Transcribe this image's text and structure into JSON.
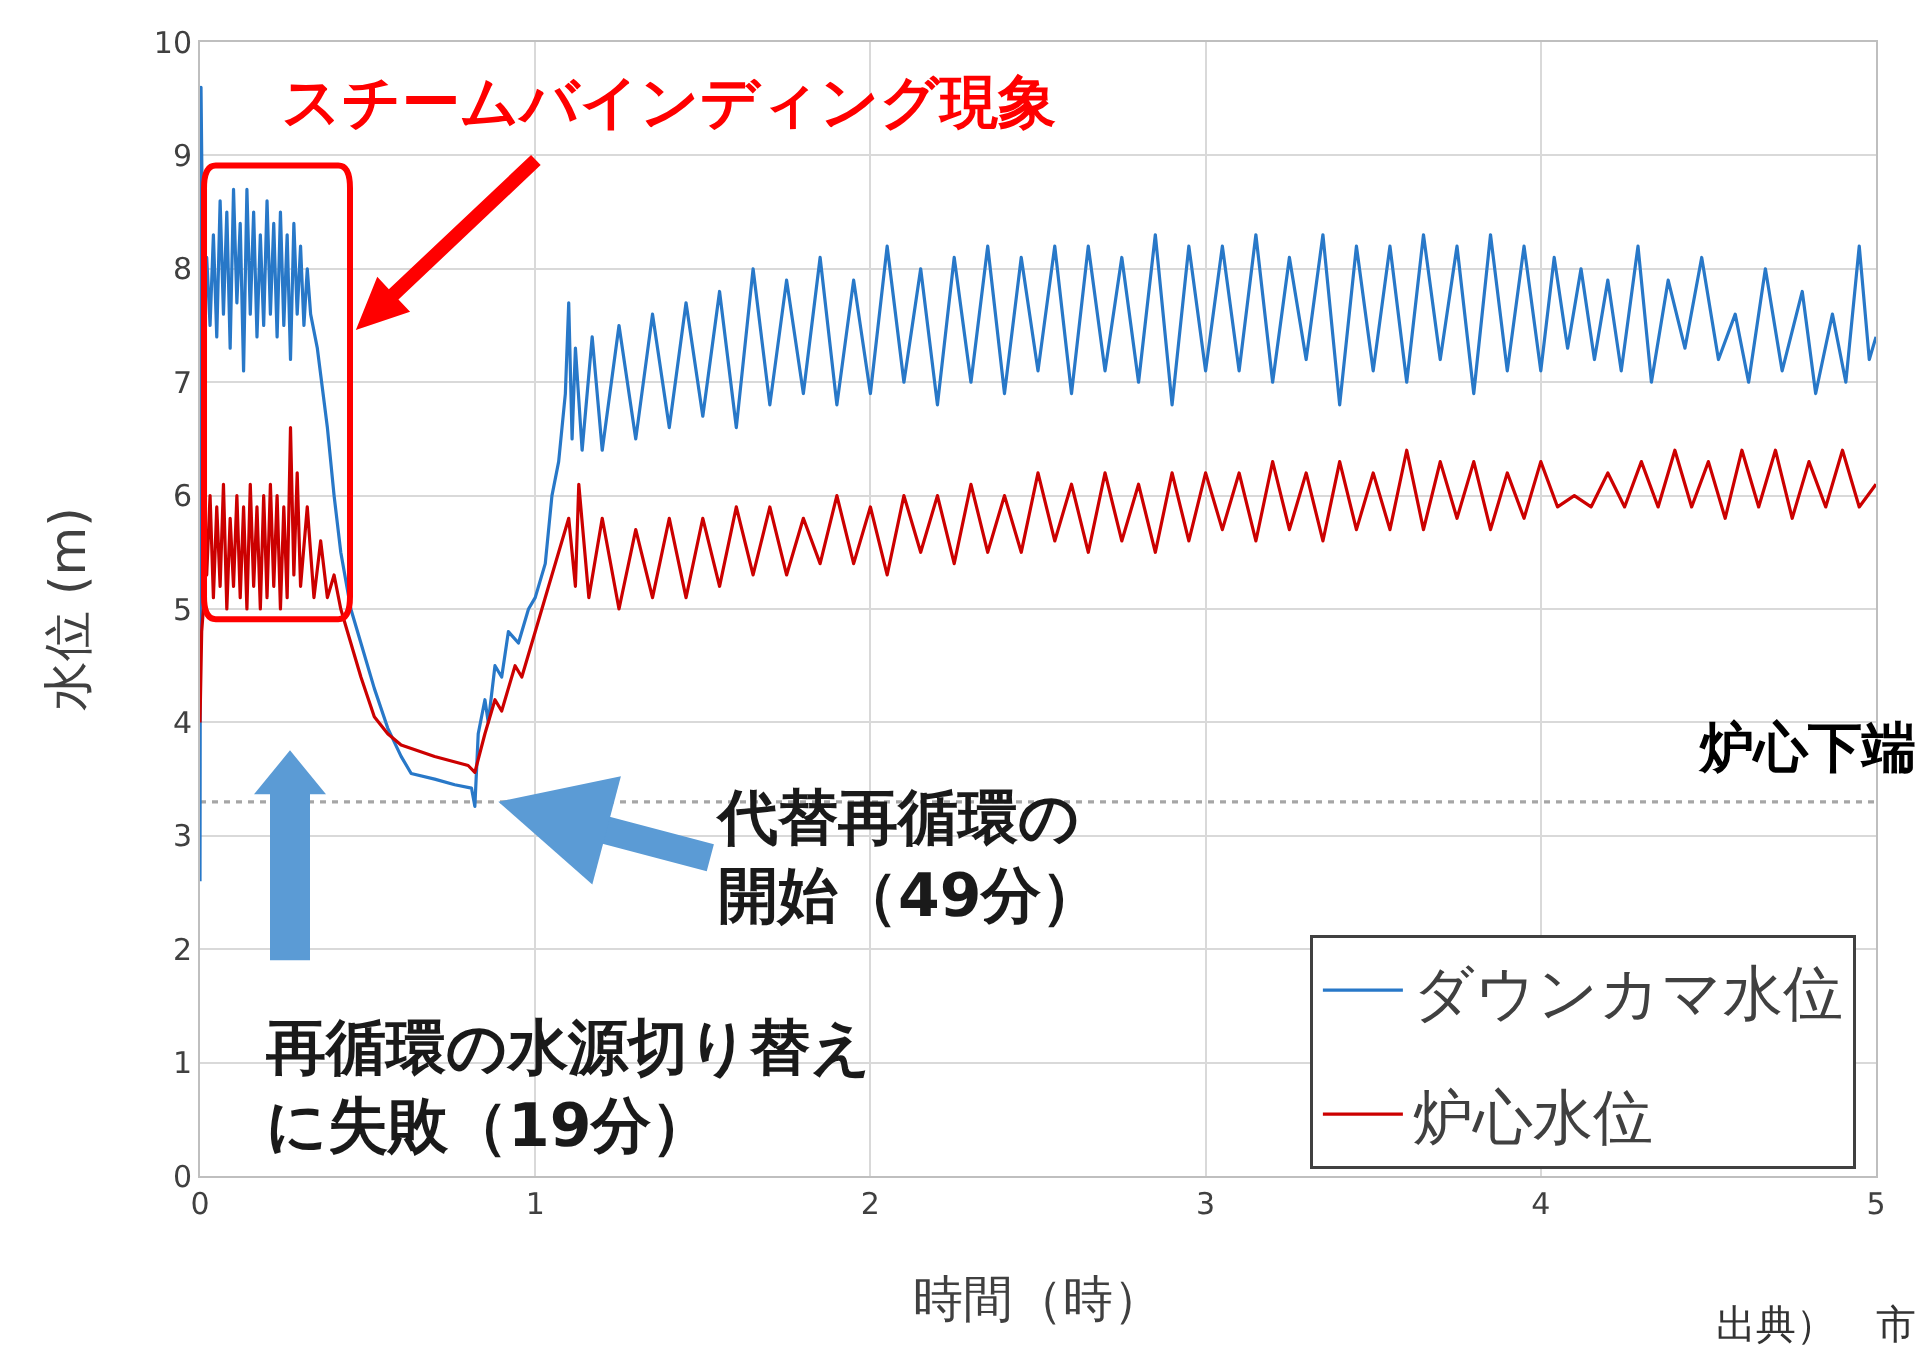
{
  "chart_data": {
    "type": "line",
    "xlabel": "時間（時）",
    "ylabel": "水位 (m)",
    "xlim": [
      0,
      5
    ],
    "xticks": [
      0,
      1,
      2,
      3,
      4,
      5
    ],
    "ylim": [
      0,
      10
    ],
    "yticks": [
      0,
      1,
      2,
      3,
      4,
      5,
      6,
      7,
      8,
      9,
      10
    ],
    "grid": true,
    "legend": "bottom right",
    "series": [
      {
        "name": "ダウンカマ水位",
        "color": "#2878c8",
        "x": [
          0,
          0.003,
          0.01,
          0.02,
          0.03,
          0.04,
          0.05,
          0.06,
          0.07,
          0.08,
          0.09,
          0.1,
          0.11,
          0.12,
          0.13,
          0.14,
          0.15,
          0.16,
          0.17,
          0.18,
          0.19,
          0.2,
          0.21,
          0.22,
          0.23,
          0.24,
          0.25,
          0.26,
          0.27,
          0.28,
          0.29,
          0.3,
          0.31,
          0.32,
          0.33,
          0.35,
          0.38,
          0.4,
          0.42,
          0.45,
          0.48,
          0.52,
          0.56,
          0.6,
          0.63,
          0.7,
          0.76,
          0.81,
          0.82,
          0.83,
          0.85,
          0.86,
          0.88,
          0.9,
          0.92,
          0.95,
          0.98,
          1.0,
          1.03,
          1.05,
          1.07,
          1.09,
          1.1,
          1.11,
          1.12,
          1.14,
          1.17,
          1.2,
          1.25,
          1.3,
          1.35,
          1.4,
          1.45,
          1.5,
          1.55,
          1.6,
          1.65,
          1.7,
          1.75,
          1.8,
          1.85,
          1.9,
          1.95,
          2.0,
          2.05,
          2.1,
          2.15,
          2.2,
          2.25,
          2.3,
          2.35,
          2.4,
          2.45,
          2.5,
          2.55,
          2.6,
          2.65,
          2.7,
          2.75,
          2.8,
          2.85,
          2.9,
          2.95,
          3.0,
          3.05,
          3.1,
          3.15,
          3.2,
          3.25,
          3.3,
          3.35,
          3.4,
          3.45,
          3.5,
          3.55,
          3.6,
          3.65,
          3.7,
          3.75,
          3.8,
          3.85,
          3.9,
          3.95,
          4.0,
          4.04,
          4.08,
          4.12,
          4.16,
          4.2,
          4.24,
          4.29,
          4.33,
          4.38,
          4.43,
          4.48,
          4.53,
          4.58,
          4.62,
          4.67,
          4.72,
          4.78,
          4.82,
          4.87,
          4.91,
          4.95,
          4.98,
          5.0
        ],
        "values": [
          2.6,
          9.6,
          7.6,
          8.1,
          7.5,
          8.3,
          7.4,
          8.6,
          7.6,
          8.5,
          7.3,
          8.7,
          7.7,
          8.4,
          7.1,
          8.7,
          7.6,
          8.5,
          7.4,
          8.3,
          7.5,
          8.6,
          7.6,
          8.4,
          7.4,
          8.5,
          7.5,
          8.3,
          7.2,
          8.4,
          7.6,
          8.2,
          7.5,
          8.0,
          7.6,
          7.3,
          6.6,
          6.0,
          5.5,
          5.0,
          4.7,
          4.3,
          3.95,
          3.7,
          3.55,
          3.5,
          3.45,
          3.42,
          3.26,
          3.9,
          4.2,
          4.0,
          4.5,
          4.4,
          4.8,
          4.7,
          5.0,
          5.1,
          5.4,
          6.0,
          6.3,
          6.9,
          7.7,
          6.5,
          7.3,
          6.4,
          7.4,
          6.4,
          7.5,
          6.5,
          7.6,
          6.6,
          7.7,
          6.7,
          7.8,
          6.6,
          8.0,
          6.8,
          7.9,
          6.9,
          8.1,
          6.8,
          7.9,
          6.9,
          8.2,
          7.0,
          8.0,
          6.8,
          8.1,
          7.0,
          8.2,
          6.9,
          8.1,
          7.1,
          8.2,
          6.9,
          8.2,
          7.1,
          8.1,
          7.0,
          8.3,
          6.8,
          8.2,
          7.1,
          8.2,
          7.1,
          8.3,
          7.0,
          8.1,
          7.2,
          8.3,
          6.8,
          8.2,
          7.1,
          8.2,
          7.0,
          8.3,
          7.2,
          8.2,
          6.9,
          8.3,
          7.1,
          8.2,
          7.1,
          8.1,
          7.3,
          8.0,
          7.2,
          7.9,
          7.1,
          8.2,
          7.0,
          7.9,
          7.3,
          8.1,
          7.2,
          7.6,
          7.0,
          8.0,
          7.1,
          7.8,
          6.9,
          7.6,
          7.0,
          8.2,
          7.2,
          7.4
        ]
      },
      {
        "name": "炉心水位",
        "color": "#cc0000",
        "x": [
          0,
          0.005,
          0.01,
          0.015,
          0.02,
          0.03,
          0.04,
          0.05,
          0.06,
          0.07,
          0.08,
          0.09,
          0.1,
          0.11,
          0.12,
          0.13,
          0.14,
          0.15,
          0.16,
          0.17,
          0.18,
          0.19,
          0.2,
          0.21,
          0.22,
          0.23,
          0.24,
          0.25,
          0.26,
          0.27,
          0.28,
          0.29,
          0.3,
          0.32,
          0.34,
          0.36,
          0.38,
          0.4,
          0.42,
          0.44,
          0.48,
          0.52,
          0.56,
          0.6,
          0.7,
          0.8,
          0.82,
          0.85,
          0.88,
          0.9,
          0.94,
          0.96,
          1.0,
          1.04,
          1.07,
          1.1,
          1.12,
          1.13,
          1.16,
          1.2,
          1.25,
          1.3,
          1.35,
          1.4,
          1.45,
          1.5,
          1.55,
          1.6,
          1.65,
          1.7,
          1.75,
          1.8,
          1.85,
          1.9,
          1.95,
          2.0,
          2.05,
          2.1,
          2.15,
          2.2,
          2.25,
          2.3,
          2.35,
          2.4,
          2.45,
          2.5,
          2.55,
          2.6,
          2.65,
          2.7,
          2.75,
          2.8,
          2.85,
          2.9,
          2.95,
          3.0,
          3.05,
          3.1,
          3.15,
          3.2,
          3.25,
          3.3,
          3.35,
          3.4,
          3.45,
          3.5,
          3.55,
          3.6,
          3.65,
          3.7,
          3.75,
          3.8,
          3.85,
          3.9,
          3.95,
          4.0,
          4.05,
          4.1,
          4.15,
          4.2,
          4.25,
          4.3,
          4.35,
          4.4,
          4.45,
          4.5,
          4.55,
          4.6,
          4.65,
          4.7,
          4.75,
          4.8,
          4.85,
          4.9,
          4.95,
          5.0
        ],
        "values": [
          4.0,
          4.8,
          5.0,
          5.8,
          5.3,
          6.0,
          5.1,
          5.9,
          5.2,
          6.1,
          5.0,
          5.8,
          5.2,
          6.0,
          5.1,
          5.9,
          5.0,
          6.1,
          5.2,
          5.9,
          5.0,
          6.0,
          5.1,
          6.1,
          5.2,
          6.0,
          5.0,
          5.9,
          5.1,
          6.6,
          5.3,
          6.2,
          5.2,
          5.9,
          5.1,
          5.6,
          5.1,
          5.3,
          5.0,
          4.8,
          4.4,
          4.05,
          3.9,
          3.8,
          3.7,
          3.62,
          3.56,
          3.9,
          4.2,
          4.1,
          4.5,
          4.4,
          4.8,
          5.2,
          5.5,
          5.8,
          5.2,
          6.1,
          5.1,
          5.8,
          5.0,
          5.7,
          5.1,
          5.8,
          5.1,
          5.8,
          5.2,
          5.9,
          5.3,
          5.9,
          5.3,
          5.8,
          5.4,
          6.0,
          5.4,
          5.9,
          5.3,
          6.0,
          5.5,
          6.0,
          5.4,
          6.1,
          5.5,
          6.0,
          5.5,
          6.2,
          5.6,
          6.1,
          5.5,
          6.2,
          5.6,
          6.1,
          5.5,
          6.2,
          5.6,
          6.2,
          5.7,
          6.2,
          5.6,
          6.3,
          5.7,
          6.2,
          5.6,
          6.3,
          5.7,
          6.2,
          5.7,
          6.4,
          5.7,
          6.3,
          5.8,
          6.3,
          5.7,
          6.2,
          5.8,
          6.3,
          5.9,
          6.0,
          5.9,
          6.2,
          5.9,
          6.3,
          5.9,
          6.4,
          5.9,
          6.3,
          5.8,
          6.4,
          5.9,
          6.4,
          5.8,
          6.3,
          5.9,
          6.4,
          5.9,
          6.1
        ]
      }
    ],
    "ref_lines": [
      {
        "axis": "y",
        "value": 3.3,
        "label": "炉心下端",
        "color": "#a6a6a6",
        "line_style": "dotted"
      }
    ],
    "annotations": [
      "スチームバインディング現象",
      "再循環の水源切り替えに失敗（19分）",
      {
        "text": "代替再循環の開始（49分）",
        "x": 0.89,
        "y": 3.3
      },
      "出典）　市"
    ]
  }
}
